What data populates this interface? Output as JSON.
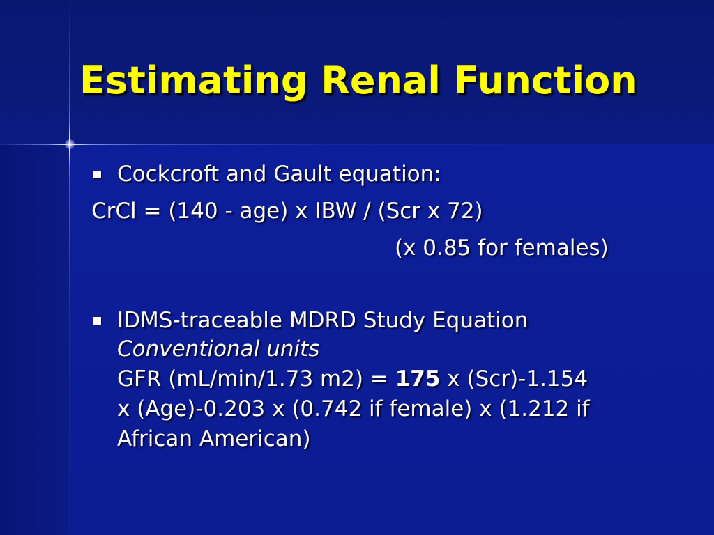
{
  "slide": {
    "title": "Estimating Renal Function",
    "bullet1": {
      "text": "Cockcroft and Gault equation:",
      "formula": "CrCl = (140 - age) x IBW / (Scr x 72)",
      "note": "(x 0.85 for females)"
    },
    "bullet2": {
      "text": "IDMS-traceable MDRD Study Equation",
      "units": "Conventional units",
      "line1_prefix": "GFR (mL/min/1.73 m2) = ",
      "line1_bold": "175",
      "line1_suffix": " x (Scr)-1.154",
      "line2": "x (Age)-0.203 x (0.742 if female) x (1.212 if",
      "line3": "African American)"
    }
  },
  "colors": {
    "title": "#ffff00",
    "text": "#ffffff",
    "background": "#0b1c92"
  }
}
